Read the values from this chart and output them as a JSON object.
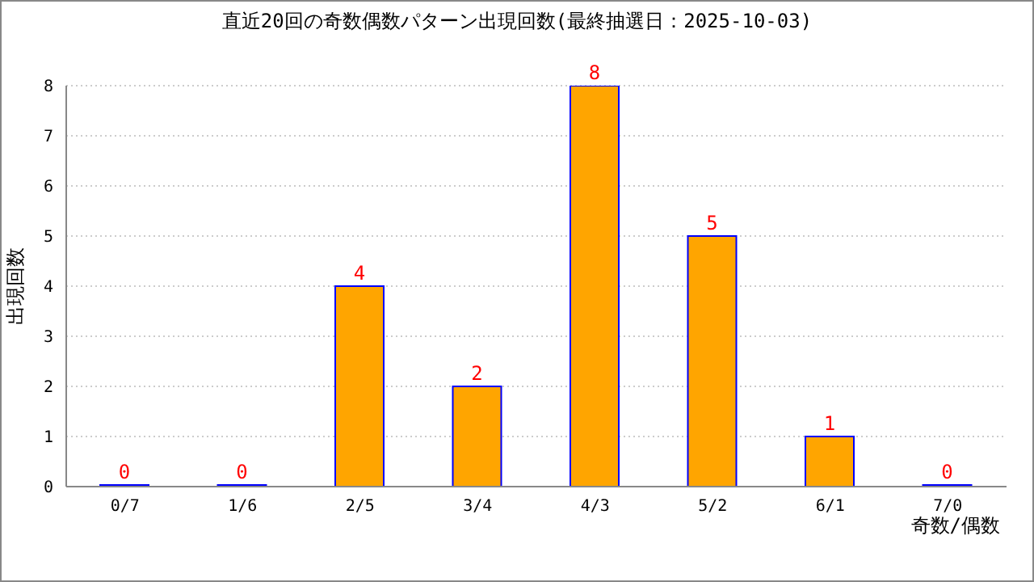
{
  "chart_data": {
    "type": "bar",
    "title": "直近20回の奇数偶数パターン出現回数(最終抽選日：2025-10-03)",
    "xlabel": "奇数/偶数",
    "ylabel": "出現回数",
    "categories": [
      "0/7",
      "1/6",
      "2/5",
      "3/4",
      "4/3",
      "5/2",
      "6/1",
      "7/0"
    ],
    "series": [
      {
        "color": "#ffa500",
        "values": [
          0,
          0,
          4,
          2,
          8,
          5,
          1,
          0
        ]
      }
    ],
    "ylim": [
      0,
      8
    ],
    "yticks": [
      0,
      1,
      2,
      3,
      4,
      5,
      6,
      7,
      8
    ],
    "grid": "y",
    "data_labels": true,
    "legend": false
  }
}
